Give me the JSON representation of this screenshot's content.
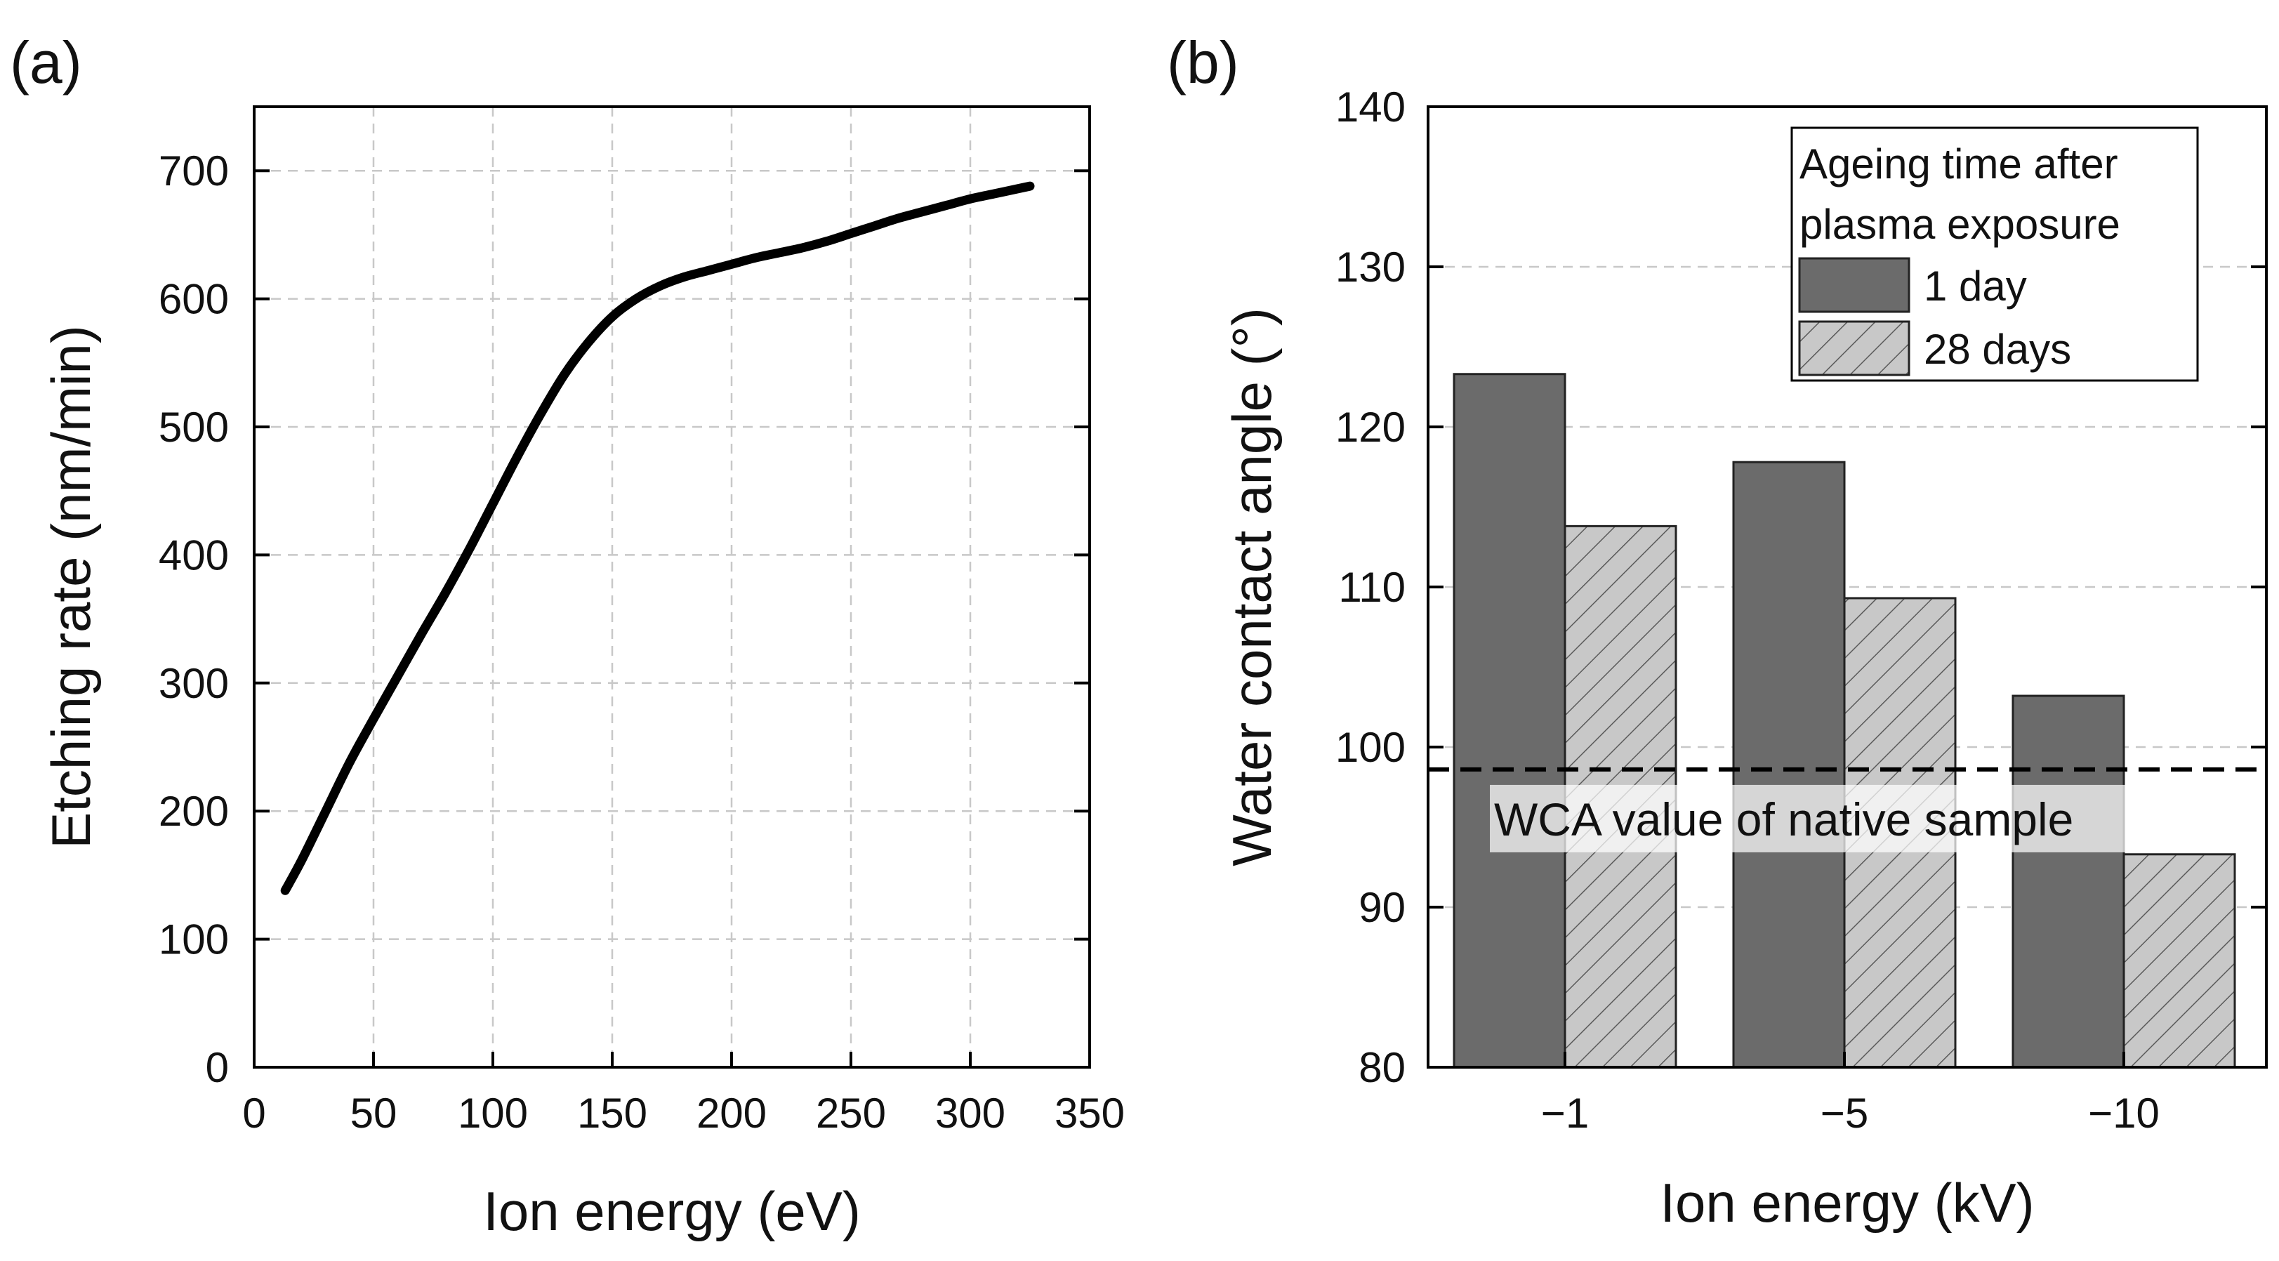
{
  "chart_data": [
    {
      "panel_label": "(a)",
      "type": "line",
      "title": "",
      "xlabel": "Ion energy (eV)",
      "ylabel": "Etching rate (nm/min)",
      "xlim": [
        0,
        350
      ],
      "ylim": [
        0,
        750
      ],
      "xticks": [
        "0",
        "50",
        "100",
        "150",
        "200",
        "250",
        "300",
        "350"
      ],
      "yticks": [
        "0",
        "100",
        "200",
        "300",
        "400",
        "500",
        "600",
        "700"
      ],
      "grid": true,
      "series": [
        {
          "name": "Etching rate",
          "color": "#000000",
          "x": [
            13,
            20,
            30,
            40,
            50,
            60,
            70,
            80,
            90,
            100,
            110,
            120,
            130,
            140,
            150,
            160,
            170,
            180,
            190,
            200,
            210,
            220,
            230,
            240,
            250,
            260,
            270,
            280,
            290,
            300,
            310,
            320,
            325
          ],
          "y": [
            138,
            162,
            200,
            238,
            272,
            305,
            338,
            370,
            404,
            440,
            476,
            510,
            541,
            566,
            586,
            600,
            610,
            617,
            622,
            627,
            632,
            636,
            640,
            645,
            651,
            657,
            663,
            668,
            673,
            678,
            682,
            686,
            688
          ]
        }
      ]
    },
    {
      "panel_label": "(b)",
      "type": "bar",
      "title": "",
      "xlabel": "Ion energy (kV)",
      "ylabel": "Water contact angle (°)",
      "ylim": [
        80,
        140
      ],
      "yticks": [
        "80",
        "90",
        "100",
        "110",
        "120",
        "130",
        "140"
      ],
      "grid": true,
      "categories": [
        "−1",
        "−5",
        "−10"
      ],
      "legend_title_lines": [
        "Ageing time after",
        "plasma exposure"
      ],
      "legend_position": "top-right",
      "series": [
        {
          "name": "1 day",
          "values": [
            123.3,
            117.8,
            103.2
          ],
          "color": "#6b6b6b",
          "pattern": "solid"
        },
        {
          "name": "28 days",
          "values": [
            113.8,
            109.3,
            93.3
          ],
          "color": "#c8c8c8",
          "pattern": "hatched"
        }
      ],
      "reference_line": {
        "value": 98.6,
        "label": "WCA value of native sample",
        "style": "dashed"
      }
    }
  ]
}
